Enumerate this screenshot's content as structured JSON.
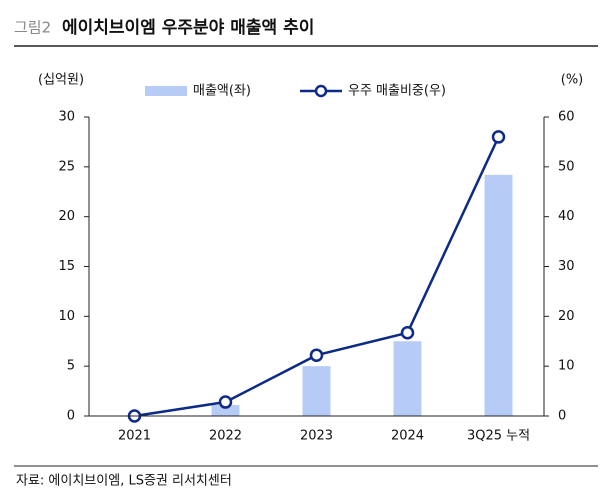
{
  "chart_data": {
    "type": "bar",
    "figure_label": "그림2",
    "title": "에이치브이엠 우주분야 매출액 추이",
    "y_label": "(십억원)",
    "y2_label": "(%)",
    "categories": [
      "2021",
      "2022",
      "2023",
      "2024",
      "3Q25 누적"
    ],
    "series": [
      {
        "name": "매출액(좌)",
        "type": "bar",
        "color": "#b7cbf7",
        "values": [
          0,
          1.1,
          5.0,
          7.5,
          24.2
        ]
      },
      {
        "name": "우주 매출비중(우)",
        "type": "line",
        "axis": "y2",
        "color": "#0d2a86",
        "values": [
          0,
          2.8,
          12.2,
          16.7,
          56.0
        ]
      }
    ],
    "ylim": [
      0,
      30
    ],
    "yticks": [
      0,
      5,
      10,
      15,
      20,
      25,
      30
    ],
    "y2lim": [
      0,
      60
    ],
    "y2ticks": [
      0,
      10,
      20,
      30,
      40,
      50,
      60
    ],
    "source": "자료: 에이치브이엠, LS증권 리서치센터"
  }
}
